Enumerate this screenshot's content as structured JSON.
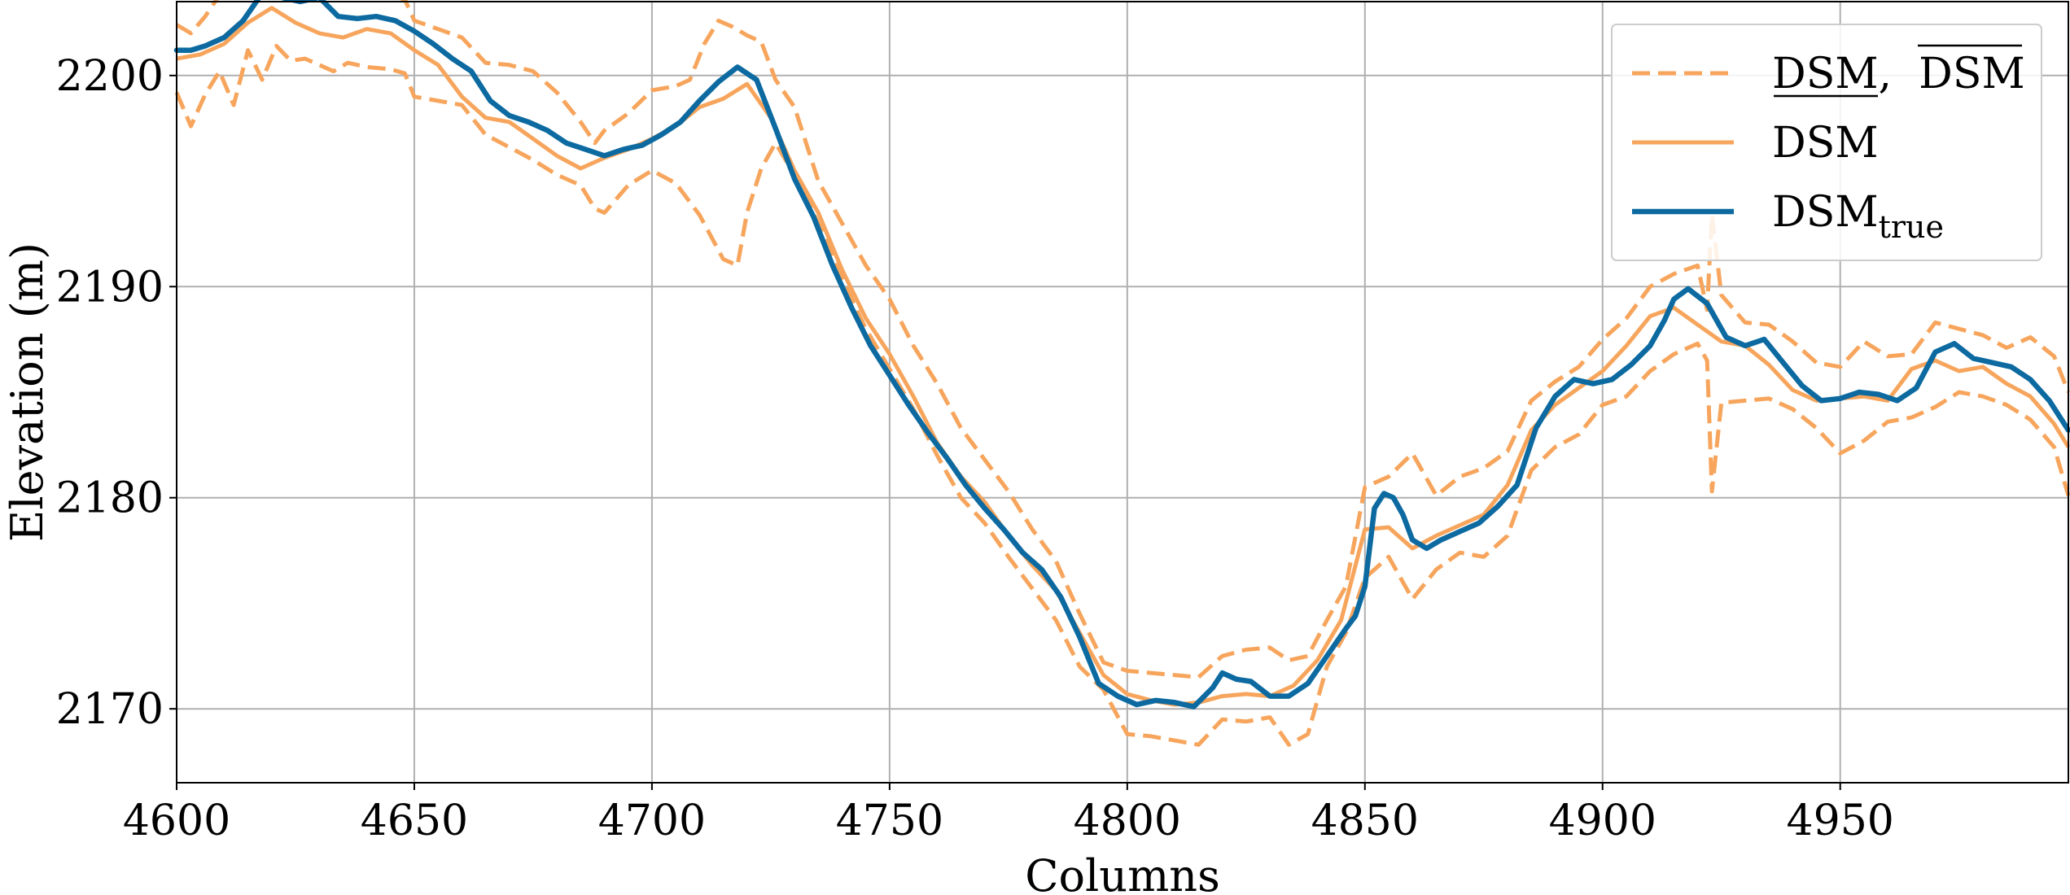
{
  "chart_data": {
    "type": "line",
    "xlabel": "Columns",
    "ylabel": "Elevation (m)",
    "xlim": [
      4600,
      4998
    ],
    "ylim": [
      2166.5,
      2203.5
    ],
    "xticks": [
      4600,
      4650,
      4700,
      4750,
      4800,
      4850,
      4900,
      4950
    ],
    "yticks": [
      2170,
      2180,
      2190,
      2200
    ],
    "grid": true,
    "legend_position": "top-right",
    "legend": [
      {
        "key": "bounds",
        "text": "DSM,  DSM"
      },
      {
        "key": "mean",
        "text": "DSM"
      },
      {
        "key": "true",
        "text": "DSM",
        "subscript": "true"
      }
    ],
    "colors": {
      "orange": "#f7a55c",
      "blue": "#0c6aa1",
      "grid": "#b0b0b0"
    },
    "series": [
      {
        "key": "mean",
        "style": "solid",
        "color": "#f7a55c",
        "x": [
          4600,
          4605,
          4610,
          4615,
          4620,
          4625,
          4630,
          4635,
          4640,
          4645,
          4650,
          4655,
          4660,
          4665,
          4670,
          4675,
          4680,
          4685,
          4690,
          4695,
          4700,
          4705,
          4710,
          4715,
          4720,
          4725,
          4730,
          4735,
          4740,
          4745,
          4750,
          4755,
          4760,
          4765,
          4770,
          4775,
          4780,
          4785,
          4790,
          4795,
          4800,
          4805,
          4810,
          4815,
          4820,
          4825,
          4830,
          4835,
          4840,
          4845,
          4850,
          4855,
          4860,
          4865,
          4870,
          4875,
          4880,
          4885,
          4890,
          4895,
          4900,
          4905,
          4910,
          4915,
          4920,
          4925,
          4930,
          4935,
          4940,
          4945,
          4950,
          4955,
          4960,
          4965,
          4970,
          4975,
          4980,
          4985,
          4990,
          4995,
          4998
        ],
        "y": [
          2200.8,
          2201.0,
          2201.5,
          2202.5,
          2203.2,
          2202.5,
          2202.0,
          2201.8,
          2202.2,
          2202.0,
          2201.2,
          2200.5,
          2199.0,
          2198.0,
          2197.8,
          2197.0,
          2196.2,
          2195.6,
          2196.1,
          2196.5,
          2197.0,
          2197.6,
          2198.5,
          2198.9,
          2199.6,
          2198.0,
          2195.5,
          2193.5,
          2190.8,
          2188.5,
          2186.8,
          2184.8,
          2182.6,
          2181.0,
          2179.8,
          2178.2,
          2176.8,
          2175.6,
          2173.6,
          2171.6,
          2170.7,
          2170.4,
          2170.2,
          2170.3,
          2170.6,
          2170.7,
          2170.6,
          2171.1,
          2172.3,
          2174.2,
          2178.5,
          2178.6,
          2177.6,
          2178.2,
          2178.7,
          2179.2,
          2180.6,
          2183.2,
          2184.4,
          2185.2,
          2186.0,
          2187.2,
          2188.6,
          2189.0,
          2188.2,
          2187.4,
          2187.2,
          2186.3,
          2185.1,
          2184.6,
          2184.7,
          2184.8,
          2184.6,
          2186.1,
          2186.5,
          2186.0,
          2186.2,
          2185.4,
          2184.8,
          2183.5,
          2182.4
        ]
      },
      {
        "key": "upper",
        "style": "dashed",
        "color": "#f7a55c",
        "x": [
          4600,
          4603,
          4606,
          4609,
          4612,
          4615,
          4618,
          4621,
          4624,
          4627,
          4630,
          4635,
          4640,
          4645,
          4648,
          4650,
          4655,
          4660,
          4665,
          4670,
          4675,
          4680,
          4685,
          4688,
          4690,
          4695,
          4700,
          4705,
          4708,
          4711,
          4714,
          4717,
          4720,
          4723,
          4726,
          4730,
          4735,
          4740,
          4745,
          4750,
          4755,
          4760,
          4765,
          4770,
          4775,
          4780,
          4785,
          4790,
          4795,
          4800,
          4805,
          4810,
          4815,
          4820,
          4825,
          4830,
          4834,
          4838,
          4842,
          4846,
          4850,
          4855,
          4860,
          4865,
          4870,
          4875,
          4880,
          4885,
          4890,
          4895,
          4900,
          4905,
          4910,
          4915,
          4920,
          4922,
          4923,
          4925,
          4930,
          4935,
          4940,
          4945,
          4950,
          4955,
          4960,
          4965,
          4970,
          4975,
          4980,
          4985,
          4990,
          4995,
          4998
        ],
        "y": [
          2202.4,
          2202.0,
          2202.8,
          2203.8,
          2204.5,
          2205.1,
          2205.2,
          2205.3,
          2205.2,
          2204.6,
          2204.2,
          2204.0,
          2203.8,
          2203.8,
          2203.6,
          2202.6,
          2202.2,
          2201.8,
          2200.6,
          2200.5,
          2200.2,
          2199.2,
          2197.8,
          2196.8,
          2197.4,
          2198.2,
          2199.3,
          2199.5,
          2199.8,
          2201.5,
          2202.6,
          2202.3,
          2201.9,
          2201.6,
          2199.8,
          2198.5,
          2195.0,
          2193.0,
          2191.0,
          2189.4,
          2187.2,
          2185.4,
          2183.3,
          2181.8,
          2180.3,
          2178.5,
          2177.0,
          2174.5,
          2172.2,
          2171.8,
          2171.7,
          2171.6,
          2171.5,
          2172.5,
          2172.8,
          2172.9,
          2172.3,
          2172.5,
          2174.2,
          2175.8,
          2180.5,
          2181.0,
          2182.1,
          2180.1,
          2181.0,
          2181.4,
          2182.2,
          2184.6,
          2185.5,
          2186.2,
          2187.5,
          2188.5,
          2190.0,
          2190.6,
          2191.0,
          2188.9,
          2193.4,
          2189.6,
          2188.3,
          2188.2,
          2187.4,
          2186.4,
          2186.2,
          2187.4,
          2186.7,
          2186.8,
          2188.3,
          2188.0,
          2187.7,
          2187.1,
          2187.6,
          2186.7,
          2185.0
        ]
      },
      {
        "key": "lower",
        "style": "dashed",
        "color": "#f7a55c",
        "x": [
          4600,
          4603,
          4606,
          4609,
          4612,
          4615,
          4618,
          4621,
          4624,
          4627,
          4630,
          4633,
          4636,
          4640,
          4645,
          4648,
          4650,
          4655,
          4660,
          4665,
          4670,
          4675,
          4680,
          4685,
          4688,
          4690,
          4695,
          4700,
          4705,
          4710,
          4715,
          4718,
          4720,
          4723,
          4726,
          4730,
          4735,
          4740,
          4745,
          4750,
          4755,
          4760,
          4765,
          4770,
          4775,
          4780,
          4785,
          4790,
          4795,
          4800,
          4805,
          4810,
          4815,
          4820,
          4825,
          4830,
          4834,
          4838,
          4842,
          4846,
          4850,
          4855,
          4860,
          4865,
          4870,
          4875,
          4880,
          4885,
          4890,
          4895,
          4900,
          4905,
          4910,
          4915,
          4920,
          4922,
          4923,
          4925,
          4930,
          4935,
          4940,
          4945,
          4950,
          4955,
          4960,
          4965,
          4970,
          4975,
          4980,
          4985,
          4990,
          4995,
          4998
        ],
        "y": [
          2199.2,
          2197.6,
          2199.1,
          2200.2,
          2198.6,
          2201.2,
          2199.8,
          2201.4,
          2200.7,
          2200.8,
          2200.5,
          2200.2,
          2200.6,
          2200.4,
          2200.3,
          2200.1,
          2199.0,
          2198.8,
          2198.6,
          2197.2,
          2196.6,
          2196.0,
          2195.3,
          2194.8,
          2193.7,
          2193.5,
          2194.8,
          2195.5,
          2194.9,
          2193.4,
          2191.3,
          2191.0,
          2193.5,
          2195.6,
          2196.8,
          2195.3,
          2193.0,
          2190.4,
          2188.0,
          2186.1,
          2184.2,
          2182.0,
          2180.0,
          2178.8,
          2177.2,
          2175.7,
          2174.2,
          2172.0,
          2170.9,
          2168.8,
          2168.7,
          2168.5,
          2168.3,
          2169.5,
          2169.4,
          2169.6,
          2168.3,
          2168.8,
          2172.0,
          2173.6,
          2176.2,
          2177.2,
          2175.2,
          2176.6,
          2177.4,
          2177.2,
          2178.2,
          2181.3,
          2182.4,
          2183.0,
          2184.4,
          2184.8,
          2186.0,
          2186.8,
          2187.3,
          2186.5,
          2180.3,
          2184.5,
          2184.6,
          2184.7,
          2184.2,
          2183.3,
          2182.1,
          2182.7,
          2183.6,
          2183.8,
          2184.3,
          2185.0,
          2184.8,
          2184.4,
          2183.7,
          2182.4,
          2180.1
        ]
      },
      {
        "key": "true",
        "style": "solid",
        "color": "#0c6aa1",
        "x": [
          4600,
          4603,
          4606,
          4610,
          4614,
          4618,
          4622,
          4626,
          4630,
          4634,
          4638,
          4642,
          4646,
          4650,
          4654,
          4658,
          4662,
          4666,
          4670,
          4674,
          4678,
          4682,
          4686,
          4690,
          4694,
          4698,
          4702,
          4706,
          4710,
          4714,
          4718,
          4722,
          4726,
          4730,
          4734,
          4738,
          4742,
          4746,
          4750,
          4754,
          4758,
          4762,
          4766,
          4770,
          4774,
          4778,
          4782,
          4786,
          4790,
          4794,
          4798,
          4802,
          4806,
          4810,
          4814,
          4818,
          4820,
          4823,
          4826,
          4830,
          4834,
          4838,
          4842,
          4846,
          4848,
          4850,
          4852,
          4854,
          4856,
          4858,
          4860,
          4863,
          4866,
          4870,
          4874,
          4878,
          4882,
          4886,
          4890,
          4894,
          4898,
          4902,
          4906,
          4910,
          4913,
          4915,
          4918,
          4922,
          4926,
          4930,
          4934,
          4938,
          4942,
          4946,
          4950,
          4954,
          4958,
          4962,
          4966,
          4970,
          4974,
          4978,
          4982,
          4986,
          4990,
          4994,
          4998
        ],
        "y": [
          2201.2,
          2201.2,
          2201.4,
          2201.8,
          2202.6,
          2203.9,
          2203.7,
          2203.5,
          2203.7,
          2202.8,
          2202.7,
          2202.8,
          2202.6,
          2202.1,
          2201.5,
          2200.8,
          2200.2,
          2198.8,
          2198.1,
          2197.8,
          2197.4,
          2196.8,
          2196.5,
          2196.2,
          2196.5,
          2196.7,
          2197.2,
          2197.8,
          2198.8,
          2199.7,
          2200.4,
          2199.8,
          2197.5,
          2195.1,
          2193.3,
          2191.0,
          2189.0,
          2187.2,
          2185.8,
          2184.4,
          2183.1,
          2181.9,
          2180.6,
          2179.5,
          2178.5,
          2177.4,
          2176.6,
          2175.3,
          2173.4,
          2171.2,
          2170.6,
          2170.2,
          2170.4,
          2170.3,
          2170.1,
          2171.0,
          2171.7,
          2171.4,
          2171.3,
          2170.6,
          2170.6,
          2171.2,
          2172.5,
          2173.8,
          2174.4,
          2175.8,
          2179.5,
          2180.2,
          2180.0,
          2179.2,
          2178.0,
          2177.6,
          2178.0,
          2178.4,
          2178.8,
          2179.6,
          2180.6,
          2183.3,
          2184.8,
          2185.6,
          2185.4,
          2185.6,
          2186.3,
          2187.2,
          2188.4,
          2189.4,
          2189.9,
          2189.2,
          2187.6,
          2187.2,
          2187.5,
          2186.4,
          2185.3,
          2184.6,
          2184.7,
          2185.0,
          2184.9,
          2184.6,
          2185.2,
          2186.9,
          2187.3,
          2186.6,
          2186.4,
          2186.2,
          2185.6,
          2184.6,
          2183.2
        ]
      }
    ]
  }
}
